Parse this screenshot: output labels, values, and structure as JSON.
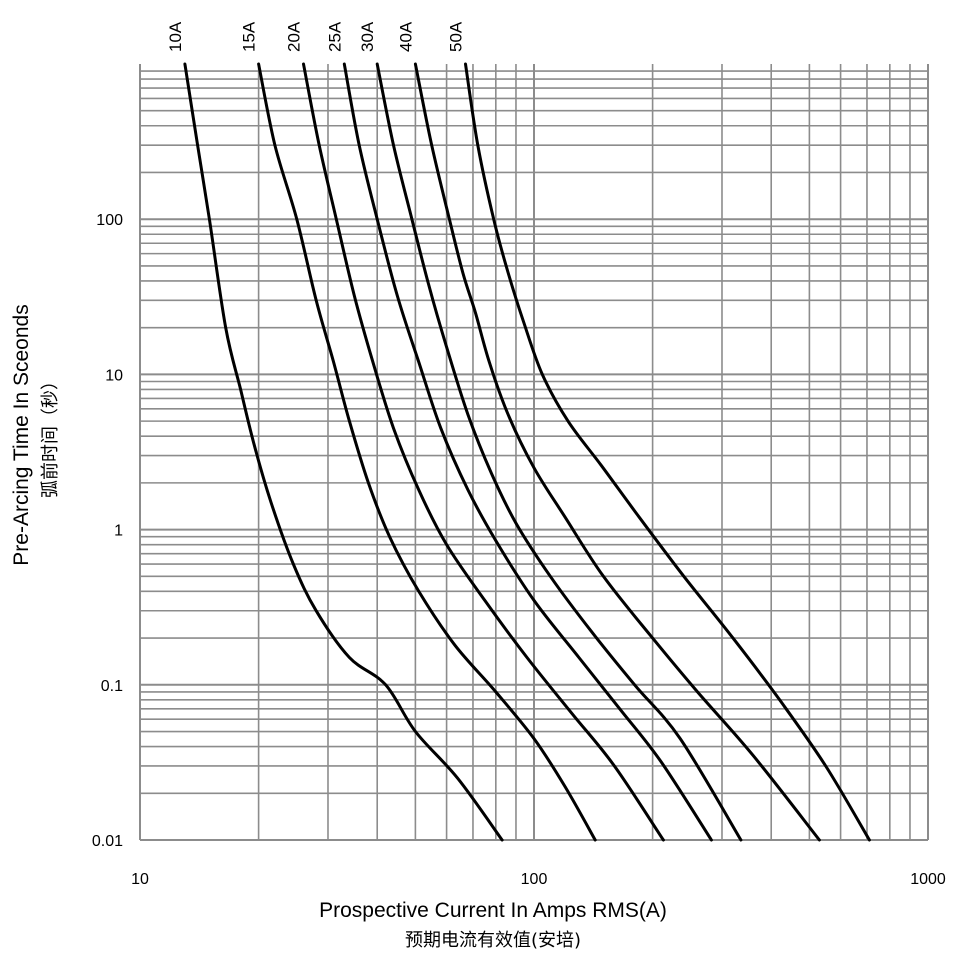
{
  "chart_data": {
    "type": "line",
    "xlabel": "Prospective  Current In Amps RMS(A)",
    "xlabel_sub": "预期电流有效值(安培)",
    "ylabel": "Pre-Arcing Time In Sceonds",
    "ylabel_sub": "弧前时间（秒）",
    "x_scale": "log",
    "y_scale": "log",
    "xlim": [
      10,
      1000
    ],
    "ylim": [
      0.01,
      1000
    ],
    "x_ticks": [
      "10",
      "100",
      "1000"
    ],
    "y_ticks": [
      "0.01",
      "0.1",
      "1",
      "10",
      "100"
    ],
    "grid": true,
    "series": [
      {
        "name": "10A",
        "points": [
          [
            13.0,
            1000
          ],
          [
            14.0,
            300
          ],
          [
            15.0,
            100
          ],
          [
            16.5,
            20
          ],
          [
            18.0,
            8
          ],
          [
            19.5,
            3.5
          ],
          [
            21.5,
            1.5
          ],
          [
            24.5,
            0.6
          ],
          [
            28,
            0.3
          ],
          [
            34,
            0.15
          ],
          [
            42,
            0.1
          ],
          [
            50,
            0.05
          ],
          [
            64,
            0.025
          ],
          [
            83,
            0.01
          ]
        ]
      },
      {
        "name": "15A",
        "points": [
          [
            20,
            1000
          ],
          [
            22,
            300
          ],
          [
            25,
            100
          ],
          [
            28,
            30
          ],
          [
            31,
            12
          ],
          [
            34,
            5
          ],
          [
            38,
            2
          ],
          [
            43,
            0.9
          ],
          [
            51,
            0.4
          ],
          [
            63,
            0.18
          ],
          [
            80,
            0.09
          ],
          [
            100,
            0.045
          ],
          [
            120,
            0.022
          ],
          [
            143,
            0.01
          ]
        ]
      },
      {
        "name": "20A",
        "points": [
          [
            26,
            1000
          ],
          [
            28.5,
            300
          ],
          [
            31.5,
            100
          ],
          [
            35,
            32
          ],
          [
            39,
            12
          ],
          [
            44,
            4.5
          ],
          [
            51,
            1.8
          ],
          [
            60,
            0.8
          ],
          [
            75,
            0.35
          ],
          [
            96,
            0.15
          ],
          [
            125,
            0.065
          ],
          [
            160,
            0.03
          ],
          [
            213,
            0.01
          ]
        ]
      },
      {
        "name": "25A",
        "points": [
          [
            33,
            1000
          ],
          [
            36,
            300
          ],
          [
            40,
            100
          ],
          [
            45,
            32
          ],
          [
            51,
            12
          ],
          [
            58,
            4.5
          ],
          [
            68,
            1.8
          ],
          [
            80,
            0.85
          ],
          [
            100,
            0.35
          ],
          [
            130,
            0.15
          ],
          [
            165,
            0.07
          ],
          [
            210,
            0.032
          ],
          [
            282,
            0.01
          ]
        ]
      },
      {
        "name": "30A",
        "points": [
          [
            40,
            1000
          ],
          [
            44,
            300
          ],
          [
            49,
            100
          ],
          [
            54,
            38
          ],
          [
            60,
            15
          ],
          [
            68,
            5.5
          ],
          [
            78,
            2.3
          ],
          [
            90,
            1.1
          ],
          [
            110,
            0.5
          ],
          [
            140,
            0.22
          ],
          [
            180,
            0.1
          ],
          [
            235,
            0.045
          ],
          [
            335,
            0.01
          ]
        ]
      },
      {
        "name": "40A",
        "points": [
          [
            50,
            1000
          ],
          [
            55,
            300
          ],
          [
            61,
            100
          ],
          [
            66,
            45
          ],
          [
            71,
            25
          ],
          [
            77,
            12
          ],
          [
            86,
            5.5
          ],
          [
            100,
            2.5
          ],
          [
            120,
            1.2
          ],
          [
            150,
            0.5
          ],
          [
            200,
            0.2
          ],
          [
            260,
            0.09
          ],
          [
            360,
            0.035
          ],
          [
            530,
            0.01
          ]
        ]
      },
      {
        "name": "50A",
        "points": [
          [
            67,
            1000
          ],
          [
            72,
            300
          ],
          [
            79,
            100
          ],
          [
            86,
            45
          ],
          [
            94,
            22
          ],
          [
            105,
            10
          ],
          [
            122,
            5
          ],
          [
            148,
            2.6
          ],
          [
            185,
            1.2
          ],
          [
            240,
            0.5
          ],
          [
            320,
            0.2
          ],
          [
            420,
            0.08
          ],
          [
            550,
            0.03
          ],
          [
            710,
            0.01
          ]
        ]
      }
    ]
  }
}
